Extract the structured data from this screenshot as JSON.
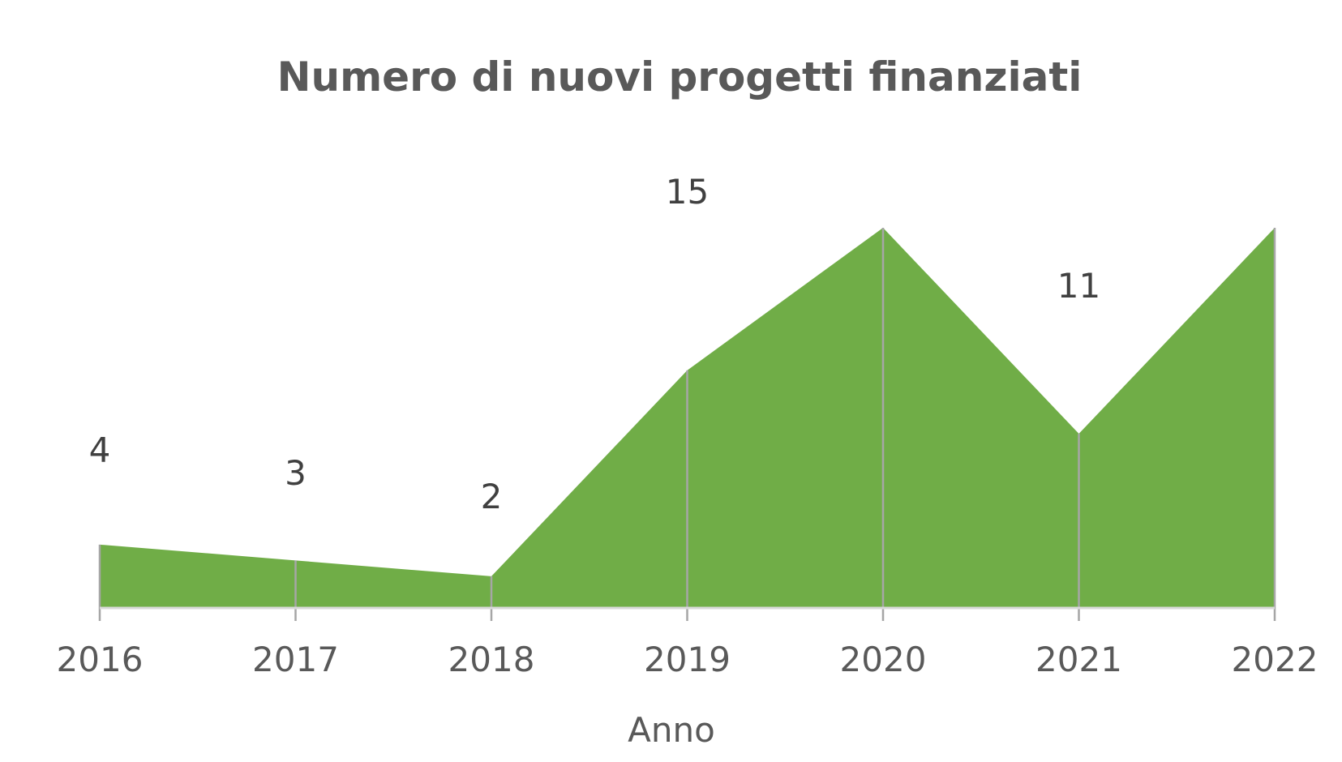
{
  "chart_data": {
    "type": "area",
    "title": "Numero di nuovi progetti finanziati",
    "xlabel": "Anno",
    "ylabel": "",
    "categories": [
      "2016",
      "2017",
      "2018",
      "2019",
      "2020",
      "2021",
      "2022"
    ],
    "series": [
      {
        "name": "",
        "values": [
          4,
          3,
          2,
          15,
          24,
          11,
          24
        ],
        "color": "#70AD47"
      }
    ],
    "ylim": [
      0,
      24
    ],
    "grid": false,
    "legend": "none",
    "data_labels": true,
    "colors": {
      "area": "#70AD47",
      "axis": "#D9D9D9",
      "drop_lines": "#A6A6A6",
      "text": "#595959",
      "labels": "#404040"
    }
  }
}
